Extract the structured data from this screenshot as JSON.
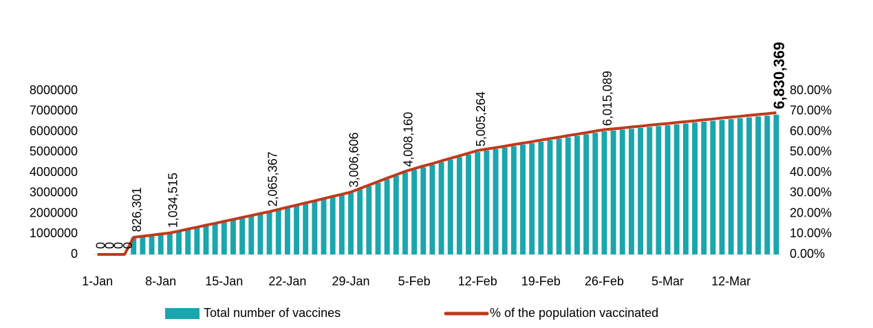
{
  "chart_data": {
    "type": "bar",
    "categories": [
      "1-Jan",
      null,
      null,
      null,
      null,
      null,
      null,
      "8-Jan",
      null,
      null,
      null,
      null,
      null,
      null,
      "15-Jan",
      null,
      null,
      null,
      null,
      null,
      null,
      "22-Jan",
      null,
      null,
      null,
      null,
      null,
      null,
      "29-Jan",
      null,
      null,
      null,
      null,
      null,
      null,
      "5-Feb",
      null,
      null,
      null,
      null,
      null,
      null,
      "12-Feb",
      null,
      null,
      null,
      null,
      null,
      null,
      "19-Feb",
      null,
      null,
      null,
      null,
      null,
      null,
      "26-Feb",
      null,
      null,
      null,
      null,
      null,
      null,
      "5-Mar",
      null,
      null,
      null,
      null,
      null,
      null,
      "12-Mar",
      null,
      null,
      null,
      null,
      null
    ],
    "series": [
      {
        "name": "Total number of vaccines",
        "type": "bar",
        "color": "#1ba5ad",
        "values": [
          0,
          0,
          0,
          0,
          826301,
          878355,
          930409,
          982462,
          1034515,
          1128229,
          1221943,
          1315657,
          1409371,
          1503085,
          1596799,
          1690513,
          1784227,
          1877941,
          1971655,
          2065367,
          2169949,
          2274531,
          2379113,
          2483695,
          2588277,
          2692859,
          2797441,
          2902023,
          3006606,
          3173532,
          3340458,
          3507384,
          3674310,
          3841236,
          4008160,
          4132798,
          4257436,
          4382074,
          4506712,
          4631350,
          4755988,
          4880626,
          5005264,
          5077394,
          5149524,
          5221654,
          5293784,
          5365914,
          5438044,
          5510174,
          5582304,
          5654434,
          5726564,
          5798694,
          5870824,
          5942954,
          6015089,
          6057999,
          6100909,
          6143819,
          6186729,
          6229639,
          6272549,
          6315459,
          6358369,
          6401279,
          6444189,
          6487099,
          6530009,
          6572919,
          6615829,
          6658739,
          6701649,
          6744559,
          6787469,
          6830369
        ],
        "value_labels": [
          "0",
          "0",
          "0",
          "0",
          "826,301",
          null,
          null,
          null,
          "1,034,515",
          null,
          null,
          null,
          null,
          null,
          null,
          null,
          null,
          null,
          null,
          "2,065,367",
          null,
          null,
          null,
          null,
          null,
          null,
          null,
          null,
          "3,006,606",
          null,
          null,
          null,
          null,
          null,
          "4,008,160",
          null,
          null,
          null,
          null,
          null,
          null,
          null,
          "5,005,264",
          null,
          null,
          null,
          null,
          null,
          null,
          null,
          null,
          null,
          null,
          null,
          null,
          null,
          "6,015,089",
          null,
          null,
          null,
          null,
          null,
          null,
          null,
          null,
          null,
          null,
          null,
          null,
          null,
          null,
          null,
          null,
          null,
          null,
          "6,830,369"
        ]
      },
      {
        "name": "% of the population vaccinated",
        "type": "line",
        "axis": "y2",
        "color": "#c0391b",
        "values": [
          0,
          0,
          0,
          0,
          8.38,
          8.9,
          9.4,
          10.0,
          10.5,
          11.4,
          12.4,
          13.3,
          14.3,
          15.2,
          16.2,
          17.1,
          18.1,
          19.0,
          20.0,
          20.9,
          22.0,
          23.1,
          24.1,
          25.2,
          26.2,
          27.3,
          28.4,
          29.4,
          30.5,
          32.2,
          33.9,
          35.6,
          37.3,
          38.9,
          40.6,
          41.9,
          43.2,
          44.4,
          45.7,
          47.0,
          48.2,
          49.5,
          50.8,
          51.5,
          52.2,
          52.9,
          53.7,
          54.4,
          55.1,
          55.9,
          56.6,
          57.3,
          58.1,
          58.8,
          59.5,
          60.3,
          61.0,
          61.4,
          61.8,
          62.3,
          62.7,
          63.2,
          63.6,
          64.0,
          64.5,
          64.9,
          65.3,
          65.8,
          66.2,
          66.7,
          67.1,
          67.5,
          68.0,
          68.4,
          68.8,
          69.3
        ]
      }
    ],
    "ylim": [
      0,
      8000000
    ],
    "yticks": [
      0,
      1000000,
      2000000,
      3000000,
      4000000,
      5000000,
      6000000,
      7000000,
      8000000
    ],
    "y2lim": [
      0,
      80
    ],
    "y2ticks": [
      {
        "value": 0,
        "label": "0.00%"
      },
      {
        "value": 10,
        "label": "10.00%"
      },
      {
        "value": 20,
        "label": "20.00%"
      },
      {
        "value": 30,
        "label": "30.00%"
      },
      {
        "value": 40,
        "label": "40.00%"
      },
      {
        "value": 50,
        "label": "50.00%"
      },
      {
        "value": 60,
        "label": "60.00%"
      },
      {
        "value": 70,
        "label": "70.00%"
      },
      {
        "value": 80,
        "label": "80.00%"
      }
    ],
    "grid": false,
    "legend": "bottom"
  }
}
